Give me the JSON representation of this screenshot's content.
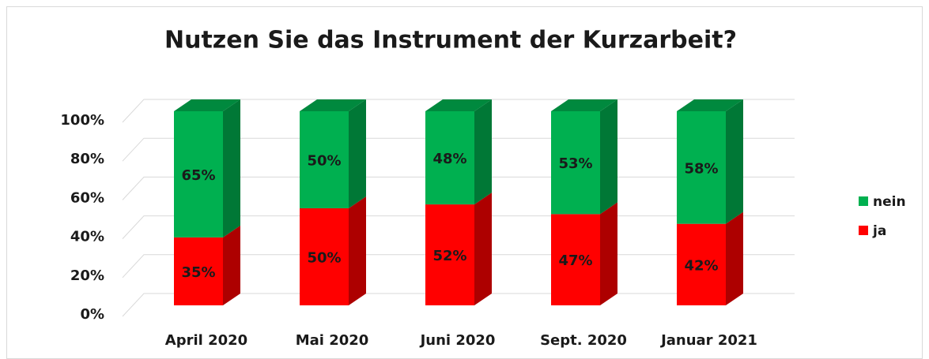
{
  "chart_data": {
    "type": "bar",
    "stacked": true,
    "title": "Nutzen Sie das Instrument der Kurzarbeit?",
    "categories": [
      "April 2020",
      "Mai 2020",
      "Juni 2020",
      "Sept. 2020",
      "Januar 2021"
    ],
    "series": [
      {
        "name": "ja",
        "color": "#ff0000",
        "values": [
          35,
          50,
          52,
          47,
          42
        ],
        "value_labels": [
          "35%",
          "50%",
          "52%",
          "47%",
          "42%"
        ]
      },
      {
        "name": "nein",
        "color": "#00b050",
        "values": [
          65,
          50,
          48,
          53,
          58
        ],
        "value_labels": [
          "65%",
          "50%",
          "48%",
          "53%",
          "58%"
        ]
      }
    ],
    "ylim": [
      0,
      100
    ],
    "yticks": [
      {
        "value": 0,
        "label": "0%"
      },
      {
        "value": 20,
        "label": "20%"
      },
      {
        "value": 40,
        "label": "40%"
      },
      {
        "value": 60,
        "label": "60%"
      },
      {
        "value": 80,
        "label": "80%"
      },
      {
        "value": 100,
        "label": "100%"
      }
    ],
    "grid": true,
    "legend": "right"
  }
}
